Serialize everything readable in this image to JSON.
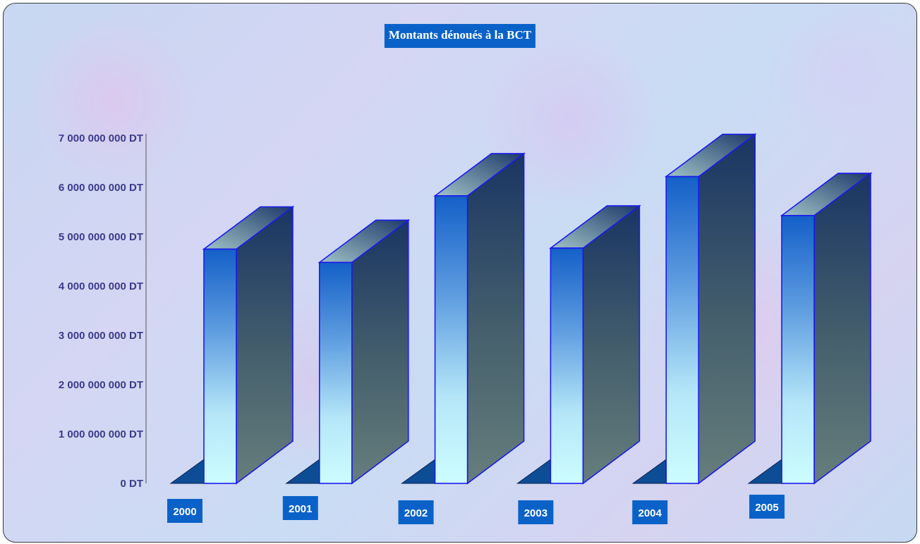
{
  "chart_data": {
    "type": "bar",
    "title": "Montants dénoués à la BCT",
    "categories": [
      "2000",
      "2001",
      "2002",
      "2003",
      "2004",
      "2005"
    ],
    "values": [
      4750000000,
      4480000000,
      5830000000,
      4770000000,
      6220000000,
      5430000000
    ],
    "ylim": [
      0,
      7000000000
    ],
    "yticks": [
      0,
      1000000000,
      2000000000,
      3000000000,
      4000000000,
      5000000000,
      6000000000,
      7000000000
    ],
    "ytick_labels": [
      "0 DT",
      "1 000 000 000 DT",
      "2 000 000 000 DT",
      "3 000 000 000 DT",
      "4 000 000 000 DT",
      "5 000 000 000 DT",
      "6 000 000 000 DT",
      "7 000 000 000 DT"
    ],
    "xlabel": "",
    "ylabel": "",
    "grid": false,
    "legend": "none"
  }
}
